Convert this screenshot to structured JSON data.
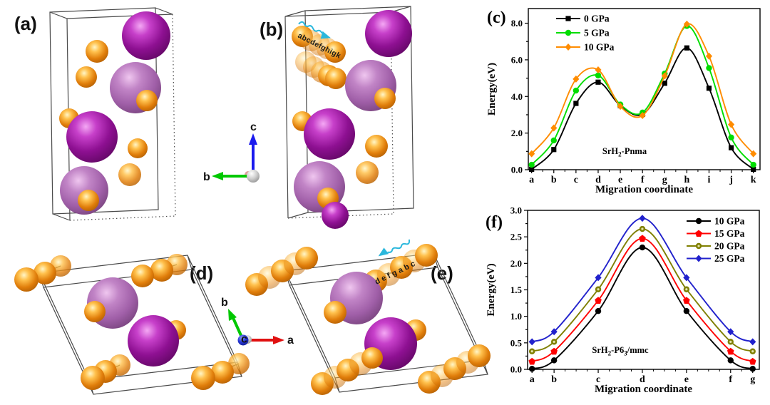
{
  "figure": {
    "background": "#ffffff",
    "panels": {
      "a": {
        "label": "(a)"
      },
      "b": {
        "label": "(b)",
        "migration_path_text": "abcdefghigk"
      },
      "d": {
        "label": "(d)"
      },
      "e": {
        "label": "(e)",
        "migration_path_text": "defgabc"
      }
    },
    "axis_indicators": {
      "bc": {
        "vertical_label": "c",
        "horizontal_label": "b"
      },
      "abc": {
        "up_label": "b",
        "right_label": "a",
        "origin_label": "c"
      },
      "colors": {
        "a_axis": "#e01010",
        "b_axis": "#00c800",
        "c_axis": "#1a1aee"
      }
    },
    "atoms": {
      "sr_color": "#8e1092",
      "sr_light_color": "#a85fb0",
      "h_color": "#e07d0a"
    },
    "arrow_color": "#2ab7dc"
  },
  "chart_data": [
    {
      "id": "c",
      "type": "line",
      "panel_label": "(c)",
      "annotation": {
        "parts": [
          {
            "t": "SrH"
          },
          {
            "t": "2",
            "sub": true
          },
          {
            "t": "-Pnma"
          }
        ]
      },
      "xlabel": "Migration coordinate",
      "ylabel": "Energy(eV)",
      "categories": [
        "a",
        "b",
        "c",
        "d",
        "e",
        "f",
        "g",
        "h",
        "i",
        "j",
        "k"
      ],
      "x": [
        0,
        1,
        2,
        3,
        4,
        5,
        6,
        7,
        8,
        9,
        10
      ],
      "xlim": [
        -0.15,
        10.3
      ],
      "ylim": [
        0,
        8.8
      ],
      "yticks": {
        "major": 2.0,
        "minor": 1.0,
        "max": 8.0,
        "decimals": 1
      },
      "grid": false,
      "legend_position": "top-left",
      "series": [
        {
          "name": "0 GPa",
          "color": "#000000",
          "marker": "square",
          "values": [
            0.02,
            1.1,
            3.62,
            4.78,
            3.5,
            3.02,
            4.72,
            6.65,
            4.45,
            1.2,
            0.02
          ]
        },
        {
          "name": "5 GPa",
          "color": "#00dd00",
          "marker": "circle",
          "values": [
            0.27,
            1.6,
            4.32,
            5.15,
            3.56,
            3.12,
            5.25,
            7.85,
            5.55,
            1.76,
            0.27
          ]
        },
        {
          "name": "10 GPa",
          "color": "#ff8c00",
          "marker": "diamond",
          "values": [
            0.87,
            2.28,
            4.95,
            5.45,
            3.46,
            2.96,
            5.12,
            7.95,
            6.2,
            2.47,
            0.87
          ]
        }
      ]
    },
    {
      "id": "f",
      "type": "line",
      "panel_label": "(f)",
      "annotation": {
        "parts": [
          {
            "t": "SrH"
          },
          {
            "t": "2",
            "sub": true
          },
          {
            "t": "-P6"
          },
          {
            "t": "3",
            "sub": true
          },
          {
            "t": "/mmc"
          }
        ]
      },
      "xlabel": "Migration coordinate",
      "ylabel": "Energy(eV)",
      "categories": [
        "a",
        "b",
        "c",
        "d",
        "e",
        "f",
        "g"
      ],
      "x": [
        0,
        0.5,
        1.5,
        2.5,
        3.5,
        4.5,
        5
      ],
      "xlim": [
        -0.1,
        5.15
      ],
      "xminor": 0.25,
      "ylim": [
        0,
        3.0
      ],
      "yticks": {
        "major": 0.5,
        "minor": 0.25,
        "max": 3.0,
        "decimals": 1
      },
      "grid": false,
      "legend_position": "top-right",
      "series": [
        {
          "name": "10 GPa",
          "color": "#000000",
          "marker": "circle",
          "values": [
            0.01,
            0.17,
            1.1,
            2.3,
            1.1,
            0.17,
            0.01
          ]
        },
        {
          "name": "15 GPa",
          "color": "#ff0000",
          "marker": "pentagon",
          "values": [
            0.15,
            0.34,
            1.3,
            2.47,
            1.3,
            0.34,
            0.15
          ]
        },
        {
          "name": "20 GPa",
          "color": "#7f7f00",
          "marker": "circle-dot",
          "values": [
            0.34,
            0.52,
            1.51,
            2.65,
            1.51,
            0.52,
            0.34
          ]
        },
        {
          "name": "25 GPa",
          "color": "#2121cc",
          "marker": "diamond",
          "values": [
            0.52,
            0.71,
            1.73,
            2.85,
            1.73,
            0.71,
            0.52
          ]
        }
      ]
    }
  ]
}
